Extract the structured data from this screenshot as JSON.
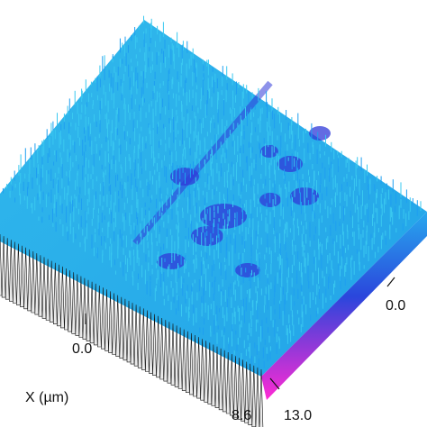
{
  "chart_data": {
    "type": "surface3d",
    "xlabel": "X (µm)",
    "x_ticks": [
      "0.0",
      "8.6"
    ],
    "y_ticks": [
      "0.0",
      "13.0"
    ],
    "xlim": [
      -8.6,
      8.6
    ],
    "ylim": [
      -13.0,
      13.0
    ],
    "colormap": [
      "#ff2ad4",
      "#2f39d8",
      "#1f9ff0",
      "#39c8f0"
    ],
    "grid": false,
    "legend": "none"
  }
}
